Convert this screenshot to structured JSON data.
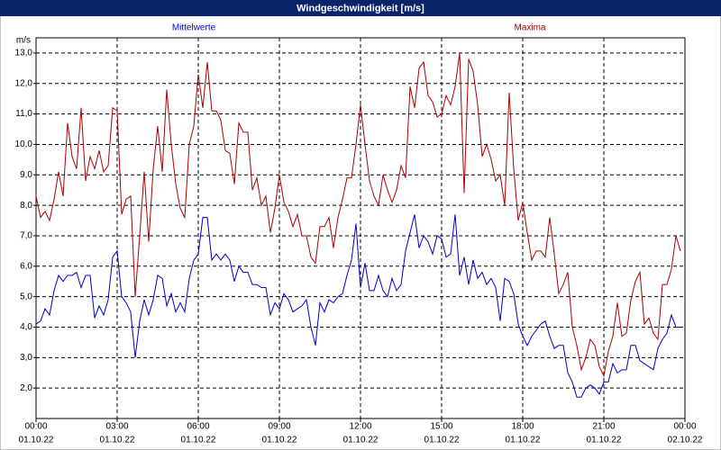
{
  "chart_data": {
    "type": "line",
    "title": "Windgeschwindigkeit [m/s]",
    "y_label": "m/s",
    "x": [
      0,
      10,
      20,
      30,
      40,
      50,
      60,
      70,
      80,
      90,
      100,
      110,
      120,
      130,
      140,
      150,
      160,
      170,
      180,
      190,
      200,
      210,
      220,
      230,
      240,
      250,
      260,
      270,
      280,
      290,
      300,
      310,
      320,
      330,
      340,
      350,
      360,
      370,
      380,
      390,
      400,
      410,
      420,
      430,
      440,
      450,
      460,
      470,
      480,
      490,
      500,
      510,
      520,
      530,
      540,
      550,
      560,
      570,
      580,
      590,
      600,
      610,
      620,
      630,
      640,
      650,
      660,
      670,
      680,
      690,
      700,
      710,
      720,
      730,
      740,
      750,
      760,
      770,
      780,
      790,
      800,
      810,
      820,
      830,
      840,
      850,
      860,
      870,
      880,
      890,
      900,
      910,
      920,
      930,
      940,
      950,
      960,
      970,
      980,
      990,
      1000,
      1010,
      1020,
      1030,
      1040,
      1050,
      1060,
      1070,
      1080,
      1090,
      1100,
      1110,
      1120,
      1130,
      1140,
      1150,
      1160,
      1170,
      1180,
      1190,
      1200,
      1210,
      1220,
      1230,
      1240,
      1250,
      1260,
      1270,
      1280,
      1290,
      1300,
      1310,
      1320,
      1330,
      1340,
      1350,
      1360,
      1370,
      1380,
      1390,
      1400,
      1410,
      1420,
      1430
    ],
    "series": [
      {
        "name": "Mittelwerte",
        "color": "#0000cc",
        "values": [
          4.1,
          4.2,
          4.6,
          4.4,
          5.2,
          5.7,
          5.5,
          5.7,
          5.7,
          5.8,
          5.3,
          5.7,
          5.7,
          4.3,
          4.7,
          4.4,
          4.9,
          6.3,
          6.5,
          5.0,
          4.8,
          4.5,
          3.0,
          4.2,
          4.9,
          4.4,
          4.9,
          5.7,
          5.6,
          4.7,
          5.1,
          4.5,
          4.8,
          4.5,
          5.6,
          6.2,
          6.4,
          7.6,
          7.6,
          6.2,
          6.4,
          6.2,
          6.4,
          6.2,
          5.5,
          6.0,
          5.8,
          5.8,
          5.4,
          5.4,
          5.3,
          5.3,
          4.4,
          4.8,
          4.6,
          5.1,
          4.9,
          4.5,
          4.6,
          4.7,
          4.9,
          4.0,
          3.4,
          4.8,
          4.5,
          4.9,
          4.8,
          5.0,
          5.1,
          5.7,
          6.2,
          7.4,
          5.3,
          6.1,
          5.2,
          5.2,
          5.7,
          5.2,
          5.0,
          5.6,
          5.2,
          5.4,
          6.5,
          7.1,
          7.7,
          6.6,
          7.0,
          6.8,
          6.4,
          7.0,
          6.9,
          6.3,
          6.4,
          7.7,
          5.7,
          6.3,
          5.4,
          6.2,
          5.6,
          5.8,
          5.4,
          5.6,
          5.3,
          4.2,
          5.6,
          5.5,
          5.1,
          4.1,
          3.7,
          3.4,
          3.7,
          3.9,
          4.1,
          4.2,
          3.7,
          3.3,
          3.4,
          3.4,
          2.5,
          2.2,
          1.7,
          1.7,
          2.0,
          2.1,
          2.0,
          1.8,
          2.2,
          2.2,
          2.8,
          2.5,
          2.6,
          2.6,
          3.4,
          3.4,
          2.9,
          2.8,
          2.7,
          2.6,
          3.3,
          3.6,
          3.8,
          4.4,
          4.0,
          4.0
        ]
      },
      {
        "name": "Maxima",
        "color": "#aa0000",
        "values": [
          8.3,
          7.6,
          7.8,
          7.5,
          8.2,
          9.1,
          8.3,
          10.7,
          9.6,
          9.2,
          11.2,
          8.8,
          9.6,
          9.2,
          9.8,
          9.1,
          9.3,
          11.2,
          11.1,
          7.7,
          8.2,
          8.3,
          5.0,
          7.0,
          9.1,
          6.8,
          9.2,
          10.6,
          9.1,
          11.8,
          10.0,
          8.7,
          7.9,
          7.6,
          10.0,
          10.6,
          12.3,
          11.2,
          12.7,
          11.1,
          11.1,
          10.8,
          9.8,
          9.7,
          8.7,
          10.7,
          10.4,
          10.4,
          8.5,
          8.9,
          8.0,
          8.3,
          7.1,
          7.9,
          9.0,
          8.1,
          7.8,
          7.3,
          7.7,
          7.0,
          7.0,
          6.3,
          6.1,
          7.3,
          7.3,
          7.6,
          6.6,
          7.6,
          8.2,
          8.9,
          8.9,
          10.0,
          11.3,
          10.0,
          8.8,
          8.3,
          8.0,
          9.0,
          8.5,
          8.1,
          8.5,
          9.3,
          8.9,
          11.9,
          11.2,
          12.5,
          12.7,
          11.6,
          11.4,
          10.9,
          11.0,
          11.6,
          11.3,
          11.9,
          13.0,
          8.4,
          12.8,
          12.4,
          11.3,
          9.6,
          10.0,
          9.5,
          8.8,
          9.0,
          8.0,
          11.7,
          9.2,
          7.5,
          8.1,
          7.1,
          6.2,
          6.5,
          6.5,
          6.3,
          7.6,
          6.4,
          5.1,
          5.4,
          5.8,
          4.0,
          3.4,
          2.6,
          3.0,
          3.6,
          3.4,
          2.7,
          2.4,
          3.2,
          3.7,
          4.8,
          3.7,
          3.8,
          4.9,
          5.5,
          5.8,
          4.1,
          4.3,
          3.8,
          3.6,
          5.4,
          5.4,
          5.9,
          7.0,
          6.5
        ]
      }
    ],
    "xlim": [
      0,
      1440
    ],
    "xticks": [
      {
        "value": 0,
        "label": "00:00",
        "date": "01.10.22"
      },
      {
        "value": 180,
        "label": "03:00",
        "date": "01.10.22"
      },
      {
        "value": 360,
        "label": "06:00",
        "date": "01.10.22"
      },
      {
        "value": 540,
        "label": "09:00",
        "date": "01.10.22"
      },
      {
        "value": 720,
        "label": "12:00",
        "date": "01.10.22"
      },
      {
        "value": 900,
        "label": "15:00",
        "date": "01.10.22"
      },
      {
        "value": 1080,
        "label": "18:00",
        "date": "01.10.22"
      },
      {
        "value": 1260,
        "label": "21:00",
        "date": "01.10.22"
      },
      {
        "value": 1440,
        "label": "00:00",
        "date": "02.10.22"
      }
    ],
    "ylim": [
      1.0,
      13.5
    ],
    "yticks": [
      {
        "value": 2,
        "label": "2,0"
      },
      {
        "value": 3,
        "label": "3,0"
      },
      {
        "value": 4,
        "label": "4,0"
      },
      {
        "value": 5,
        "label": "5,0"
      },
      {
        "value": 6,
        "label": "6,0"
      },
      {
        "value": 7,
        "label": "7,0"
      },
      {
        "value": 8,
        "label": "8,0"
      },
      {
        "value": 9,
        "label": "9,0"
      },
      {
        "value": 10,
        "label": "10,0"
      },
      {
        "value": 11,
        "label": "11,0"
      },
      {
        "value": 12,
        "label": "12,0"
      },
      {
        "value": 13,
        "label": "13,0"
      }
    ],
    "grid": true
  }
}
